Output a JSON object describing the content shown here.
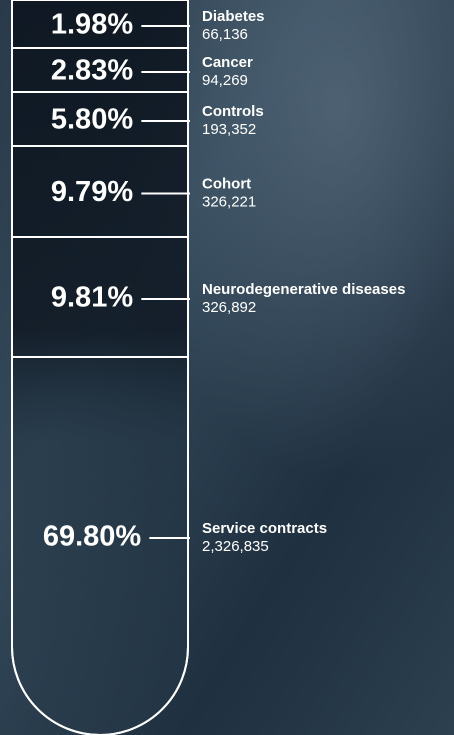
{
  "chart_data": {
    "type": "tube",
    "categories": [
      "Diabetes",
      "Cancer",
      "Controls",
      "Cohort",
      "Neurodegenerative diseases",
      "Service contracts"
    ],
    "values": [
      1.98,
      2.83,
      5.8,
      9.79,
      9.81,
      69.8
    ],
    "value_labels": [
      "1.98%",
      "2.83%",
      "5.80%",
      "9.79%",
      "9.81%",
      "69.80%"
    ],
    "counts": [
      66136,
      94269,
      193352,
      326221,
      326892,
      2326835
    ],
    "count_labels": [
      "66,136",
      "94,269",
      "193,352",
      "326,221",
      "326,892",
      "2,326,835"
    ],
    "color": "#ffffff"
  }
}
